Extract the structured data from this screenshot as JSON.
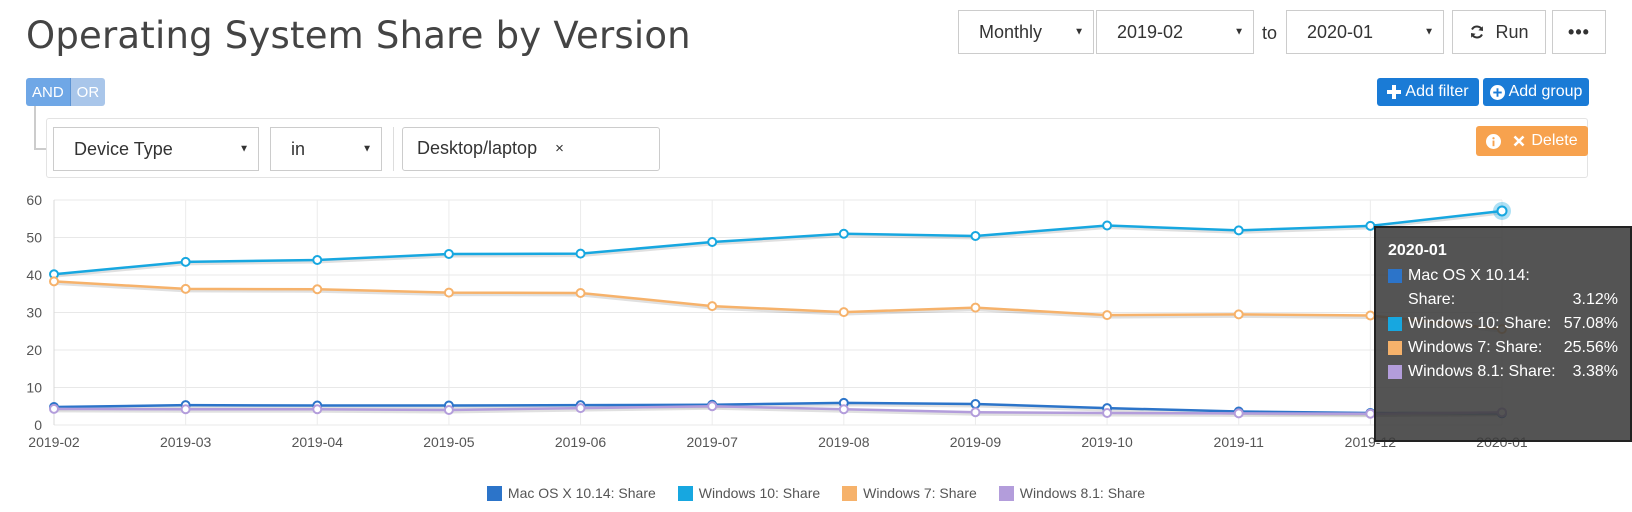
{
  "header": {
    "title": "Operating System Share by Version",
    "period": "Monthly",
    "from": "2019-02",
    "to_label": "to",
    "to": "2020-01",
    "run_label": "Run",
    "more_label": "•••"
  },
  "filters": {
    "and_label": "AND",
    "or_label": "OR",
    "add_filter_label": "Add filter",
    "add_group_label": "Add group",
    "field": "Device Type",
    "operator": "in",
    "tag": "Desktop/laptop",
    "tag_remove": "×",
    "delete_label": "Delete"
  },
  "icons": {
    "run": "refresh-icon",
    "add_filter": "plus-icon",
    "add_group": "plus-circle-icon",
    "info": "info-icon",
    "delete": "close-icon"
  },
  "chart_data": {
    "type": "line",
    "categories": [
      "2019-02",
      "2019-03",
      "2019-04",
      "2019-05",
      "2019-06",
      "2019-07",
      "2019-08",
      "2019-09",
      "2019-10",
      "2019-11",
      "2019-12",
      "2020-01"
    ],
    "ylim": [
      0,
      60
    ],
    "yticks": [
      0,
      10,
      20,
      30,
      40,
      50,
      60
    ],
    "grid": true,
    "legend_position": "bottom",
    "series": [
      {
        "name": "Mac OS X 10.14: Share",
        "color": "#2c74c9",
        "values": [
          4.8,
          5.3,
          5.2,
          5.2,
          5.3,
          5.4,
          5.9,
          5.6,
          4.5,
          3.6,
          3.2,
          3.12
        ]
      },
      {
        "name": "Windows 10: Share",
        "color": "#17a7e0",
        "values": [
          40.2,
          43.5,
          44.0,
          45.6,
          45.7,
          48.8,
          51.0,
          50.4,
          53.2,
          51.9,
          53.1,
          57.08
        ]
      },
      {
        "name": "Windows 7: Share",
        "color": "#f6b26b",
        "values": [
          38.3,
          36.3,
          36.2,
          35.3,
          35.2,
          31.7,
          30.1,
          31.3,
          29.3,
          29.5,
          29.2,
          25.56
        ]
      },
      {
        "name": "Windows 8.1: Share",
        "color": "#b39ddb",
        "values": [
          4.3,
          4.2,
          4.2,
          4.0,
          4.5,
          5.0,
          4.2,
          3.4,
          3.2,
          3.1,
          3.0,
          3.38
        ]
      }
    ],
    "tooltip": {
      "title": "2020-01",
      "rows": [
        {
          "label": "Mac OS X 10.14: Share:",
          "value": "3.12%",
          "color": "#2c74c9"
        },
        {
          "label": "Windows 10: Share:",
          "value": "57.08%",
          "color": "#17a7e0"
        },
        {
          "label": "Windows 7: Share:",
          "value": "25.56%",
          "color": "#f6b26b"
        },
        {
          "label": "Windows 8.1: Share:",
          "value": "3.38%",
          "color": "#b39ddb"
        }
      ]
    }
  }
}
